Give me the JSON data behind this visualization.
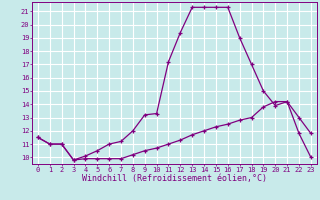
{
  "title": "",
  "xlabel": "Windchill (Refroidissement éolien,°C)",
  "ylabel": "",
  "bg_color": "#c8eaea",
  "line_color": "#800080",
  "grid_color": "#ffffff",
  "x_ticks": [
    0,
    1,
    2,
    3,
    4,
    5,
    6,
    7,
    8,
    9,
    10,
    11,
    12,
    13,
    14,
    15,
    16,
    17,
    18,
    19,
    20,
    21,
    22,
    23
  ],
  "y_ticks": [
    10,
    11,
    12,
    13,
    14,
    15,
    16,
    17,
    18,
    19,
    20,
    21
  ],
  "xlim": [
    -0.5,
    23.5
  ],
  "ylim": [
    9.5,
    21.7
  ],
  "line1_x": [
    0,
    1,
    2,
    3,
    4,
    5,
    6,
    7,
    8,
    9,
    10,
    11,
    12,
    13,
    14,
    15,
    16,
    17,
    18,
    19,
    20,
    21,
    22,
    23
  ],
  "line1_y": [
    11.5,
    11.0,
    11.0,
    9.8,
    10.1,
    10.5,
    11.0,
    11.2,
    12.0,
    13.2,
    13.3,
    17.2,
    19.4,
    21.3,
    21.3,
    21.3,
    21.3,
    19.0,
    17.0,
    15.0,
    13.9,
    14.2,
    13.0,
    11.8
  ],
  "line2_x": [
    0,
    1,
    2,
    3,
    4,
    5,
    6,
    7,
    8,
    9,
    10,
    11,
    12,
    13,
    14,
    15,
    16,
    17,
    18,
    19,
    20,
    21,
    22,
    23
  ],
  "line2_y": [
    11.5,
    11.0,
    11.0,
    9.8,
    9.9,
    9.9,
    9.9,
    9.9,
    10.2,
    10.5,
    10.7,
    11.0,
    11.3,
    11.7,
    12.0,
    12.3,
    12.5,
    12.8,
    13.0,
    13.8,
    14.2,
    14.2,
    11.8,
    10.0
  ],
  "marker": "+",
  "markersize": 3.5,
  "linewidth": 0.9,
  "tick_fontsize": 5.0,
  "xlabel_fontsize": 6.0
}
